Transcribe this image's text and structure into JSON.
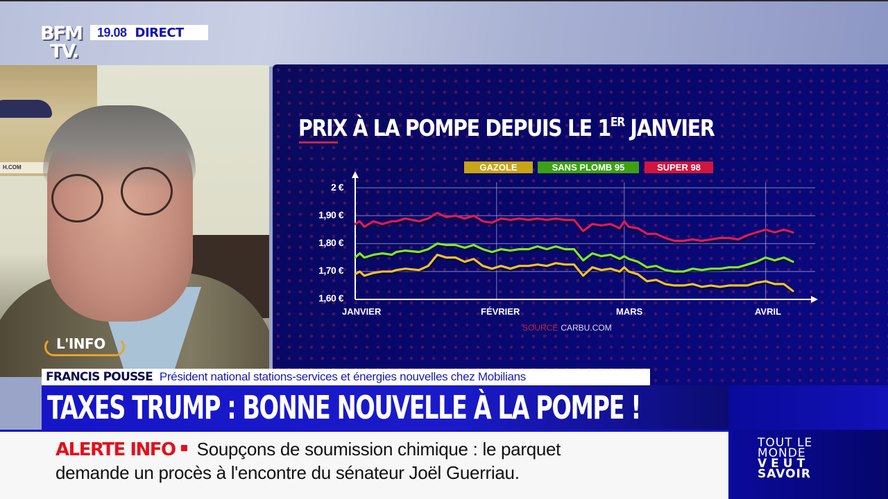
{
  "channel": {
    "logo_line1": "BFM",
    "logo_line2": "TV.",
    "time": "19.08",
    "live_label": "DIRECT"
  },
  "guest": {
    "tag": "L'INFO",
    "name": "FRANCIS POUSSE",
    "role": "Président national stations-services et énergies nouvelles chez Mobilians",
    "poster_url_text": "H.COM"
  },
  "headline": "TAXES TRUMP : BONNE NOUVELLE À LA POMPE !",
  "ticker": {
    "alert_label": "ALERTE INFO",
    "line1": "Soupçons de soumission chimique : le parquet",
    "line2": "demande un procès à l'encontre du sénateur Joël Guerriau."
  },
  "slogan": {
    "l1": "TOUT LE",
    "l2": "MONDE",
    "l3": "VEUT",
    "l4": "SAVOIR"
  },
  "colors": {
    "brand_blue": "#1616c8",
    "alert_red": "#e3101c",
    "gazole": "#f2c12e",
    "sp95": "#7bea2c",
    "super98": "#e0195a"
  },
  "chart_data": {
    "type": "line",
    "title": "PRIX À LA POMPE DEPUIS LE 1ER JANVIER",
    "title_main": "PRIX À LA POMPE DEPUIS LE 1",
    "title_sup": "ER",
    "title_end": " JANVIER",
    "xlabel": "",
    "ylabel": "",
    "x_ticks": [
      "JANVIER",
      "FÉVRIER",
      "MARS",
      "AVRIL"
    ],
    "y_ticks": [
      "2 €",
      "1,90 €",
      "1,80 €",
      "1,70 €",
      "1,60 €"
    ],
    "ylim": [
      1.6,
      2.0
    ],
    "grid": true,
    "legend_position": "top",
    "source_label": "SOURCE",
    "source_value": "CARBU.COM",
    "x_day_index": [
      0,
      1,
      2,
      4,
      6,
      8,
      9,
      11,
      14,
      16,
      18,
      20,
      22,
      24,
      26,
      28,
      30,
      32,
      34,
      36,
      38,
      40,
      42,
      44,
      46,
      48,
      50,
      52,
      54,
      56,
      58,
      59,
      60,
      62,
      64,
      66,
      68,
      70,
      72,
      74,
      76,
      78,
      80,
      82,
      84,
      86,
      88,
      90,
      92,
      94,
      96
    ],
    "series": [
      {
        "name": "SUPER 98",
        "color": "#e0195a",
        "values": [
          1.87,
          1.88,
          1.86,
          1.88,
          1.87,
          1.88,
          1.88,
          1.89,
          1.88,
          1.89,
          1.91,
          1.895,
          1.9,
          1.89,
          1.9,
          1.88,
          1.875,
          1.89,
          1.885,
          1.89,
          1.885,
          1.89,
          1.885,
          1.89,
          1.885,
          1.885,
          1.845,
          1.87,
          1.865,
          1.87,
          1.855,
          1.88,
          1.86,
          1.855,
          1.835,
          1.835,
          1.82,
          1.81,
          1.81,
          1.815,
          1.81,
          1.815,
          1.82,
          1.82,
          1.815,
          1.83,
          1.84,
          1.85,
          1.84,
          1.85,
          1.84
        ]
      },
      {
        "name": "SANS PLOMB 95",
        "color": "#7bea2c",
        "values": [
          1.75,
          1.765,
          1.75,
          1.76,
          1.765,
          1.76,
          1.77,
          1.775,
          1.77,
          1.78,
          1.8,
          1.795,
          1.795,
          1.785,
          1.795,
          1.78,
          1.77,
          1.78,
          1.775,
          1.78,
          1.78,
          1.79,
          1.78,
          1.79,
          1.78,
          1.78,
          1.74,
          1.765,
          1.755,
          1.76,
          1.745,
          1.755,
          1.745,
          1.735,
          1.715,
          1.72,
          1.705,
          1.7,
          1.7,
          1.71,
          1.705,
          1.71,
          1.71,
          1.715,
          1.715,
          1.725,
          1.735,
          1.75,
          1.74,
          1.75,
          1.735
        ]
      },
      {
        "name": "GAZOLE",
        "color": "#f2c12e",
        "values": [
          1.69,
          1.7,
          1.685,
          1.695,
          1.7,
          1.7,
          1.705,
          1.71,
          1.705,
          1.72,
          1.76,
          1.75,
          1.75,
          1.735,
          1.745,
          1.72,
          1.71,
          1.72,
          1.71,
          1.72,
          1.72,
          1.725,
          1.72,
          1.73,
          1.725,
          1.725,
          1.685,
          1.715,
          1.705,
          1.71,
          1.7,
          1.715,
          1.7,
          1.69,
          1.665,
          1.67,
          1.655,
          1.65,
          1.65,
          1.655,
          1.645,
          1.65,
          1.645,
          1.65,
          1.65,
          1.65,
          1.66,
          1.665,
          1.655,
          1.655,
          1.63
        ]
      }
    ]
  }
}
